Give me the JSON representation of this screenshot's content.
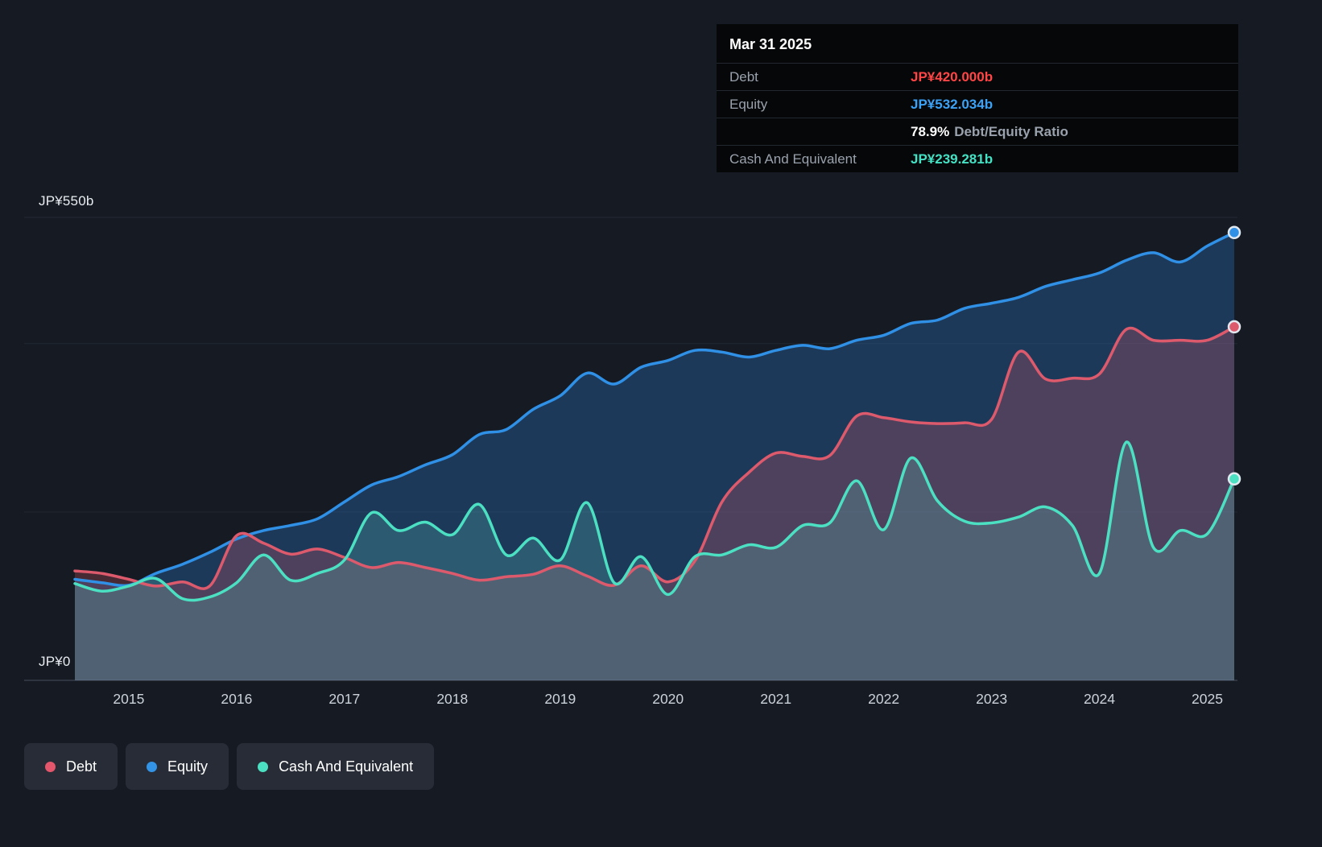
{
  "colors": {
    "background": "#151a23",
    "debt_line": "#dd5a6c",
    "equity_line": "#2f90e6",
    "cash_line": "#4ce0c3",
    "debt_value": "#ff4545",
    "equity_value": "#3ba2f6",
    "cash_value": "#43e2c4",
    "gridline": "#222833",
    "axis_line": "#474f5c",
    "tick_label": "#ccd2da"
  },
  "axis": {
    "y_top_label": "JP¥550b",
    "y_bottom_label": "JP¥0"
  },
  "tooltip": {
    "title": "Mar 31 2025",
    "debt_label": "Debt",
    "debt_value": "JP¥420.000b",
    "equity_label": "Equity",
    "equity_value": "JP¥532.034b",
    "ratio_value": "78.9%",
    "ratio_label": "Debt/Equity Ratio",
    "cash_label": "Cash And Equivalent",
    "cash_value": "JP¥239.281b"
  },
  "legend": {
    "items": [
      {
        "label": "Debt",
        "color": "#e4566b"
      },
      {
        "label": "Equity",
        "color": "#3394e6"
      },
      {
        "label": "Cash And Equivalent",
        "color": "#4be0c2"
      }
    ]
  },
  "chart_data": {
    "type": "area",
    "xlabel": "Year",
    "ylabel": "JP¥ billions",
    "ylim": [
      0,
      550
    ],
    "x_range": [
      2014.03,
      2025.28
    ],
    "gridline_values": [
      0,
      200,
      400,
      550
    ],
    "xlabels": [
      2015,
      2016,
      2017,
      2018,
      2019,
      2020,
      2021,
      2022,
      2023,
      2024,
      2025
    ],
    "x": [
      2014.5,
      2014.75,
      2015,
      2015.25,
      2015.5,
      2015.75,
      2016,
      2016.25,
      2016.5,
      2016.75,
      2017,
      2017.25,
      2017.5,
      2017.75,
      2018,
      2018.25,
      2018.5,
      2018.75,
      2019,
      2019.25,
      2019.5,
      2019.75,
      2020,
      2020.25,
      2020.5,
      2020.75,
      2021,
      2021.25,
      2021.5,
      2021.75,
      2022,
      2022.25,
      2022.5,
      2022.75,
      2023,
      2023.25,
      2023.5,
      2023.75,
      2024,
      2024.25,
      2024.5,
      2024.75,
      2025,
      2025.25
    ],
    "series": [
      {
        "name": "Equity",
        "key": "equity",
        "color": "#2f90e6",
        "fill": "rgba(41,101,166,0.42)",
        "last_value_label": "JP¥532.034b",
        "values": [
          120,
          116,
          113,
          127,
          138,
          152,
          168,
          178,
          184,
          192,
          212,
          232,
          242,
          256,
          268,
          292,
          298,
          322,
          338,
          365,
          352,
          372,
          380,
          392,
          390,
          384,
          392,
          398,
          394,
          404,
          410,
          424,
          428,
          442,
          448,
          455,
          468,
          476,
          484,
          499,
          508,
          497,
          516,
          532.034
        ]
      },
      {
        "name": "Debt",
        "key": "debt",
        "color": "#dd5a6c",
        "fill": "rgba(219,90,107,0.26)",
        "last_value_label": "JP¥420.000b",
        "values": [
          130,
          127,
          120,
          112,
          117,
          112,
          172,
          163,
          150,
          156,
          146,
          134,
          140,
          134,
          127,
          119,
          123,
          126,
          136,
          124,
          113,
          136,
          117,
          142,
          212,
          247,
          270,
          266,
          267,
          314,
          312,
          307,
          305,
          306,
          310,
          390,
          358,
          359,
          364,
          417,
          404,
          404,
          404,
          420
        ]
      },
      {
        "name": "Cash And Equivalent",
        "key": "cash",
        "color": "#4ce0c3",
        "fill": "rgba(92,195,182,0.25)",
        "last_value_label": "JP¥239.281b",
        "values": [
          115,
          106,
          112,
          121,
          97,
          99,
          116,
          149,
          119,
          127,
          143,
          199,
          178,
          188,
          173,
          209,
          149,
          169,
          143,
          211,
          116,
          147,
          102,
          147,
          149,
          161,
          158,
          184,
          187,
          237,
          179,
          264,
          213,
          189,
          187,
          194,
          206,
          184,
          127,
          283,
          158,
          178,
          174,
          239.281
        ]
      }
    ]
  }
}
